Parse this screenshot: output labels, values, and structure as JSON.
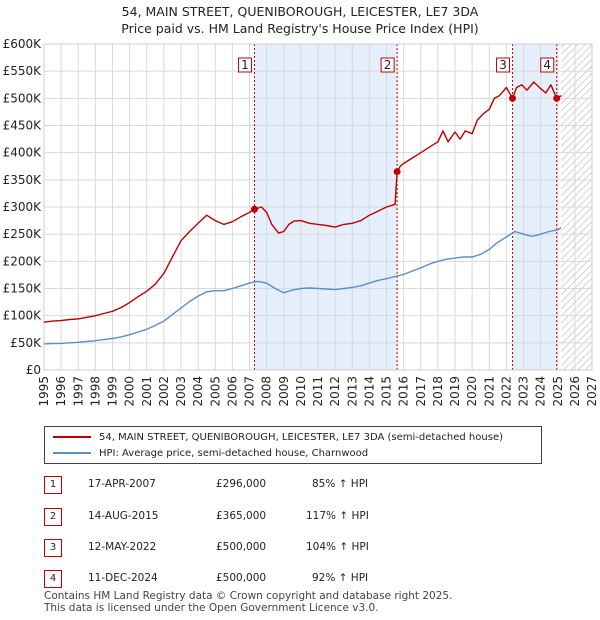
{
  "title_line1": "54, MAIN STREET, QUENIBOROUGH, LEICESTER, LE7 3DA",
  "title_line2": "Price paid vs. HM Land Registry's House Price Index (HPI)",
  "colors": {
    "red": "#c00000",
    "blue": "#5b8ec8",
    "shade": "#e5eefb",
    "grid": "#d8d8d8",
    "hatch": "#aaaaaa"
  },
  "chart_data": {
    "type": "line",
    "title": "54, MAIN STREET, QUENIBOROUGH, LEICESTER, LE7 3DA — Price paid vs. HM Land Registry's House Price Index (HPI)",
    "xlim": [
      1995,
      2027
    ],
    "ylim": [
      0,
      600000
    ],
    "y_ticks": [
      0,
      50000,
      100000,
      150000,
      200000,
      250000,
      300000,
      350000,
      400000,
      450000,
      500000,
      550000,
      600000
    ],
    "y_tick_labels": [
      "£0",
      "£50K",
      "£100K",
      "£150K",
      "£200K",
      "£250K",
      "£300K",
      "£350K",
      "£400K",
      "£450K",
      "£500K",
      "£550K",
      "£600K"
    ],
    "x_ticks": [
      1995,
      1996,
      1997,
      1998,
      1999,
      2000,
      2001,
      2002,
      2003,
      2004,
      2005,
      2006,
      2007,
      2008,
      2009,
      2010,
      2011,
      2012,
      2013,
      2014,
      2015,
      2016,
      2017,
      2018,
      2019,
      2020,
      2021,
      2022,
      2023,
      2024,
      2025,
      2026,
      2027
    ],
    "data_end": 2025.2,
    "series": [
      {
        "name": "54, MAIN STREET, QUENIBOROUGH, LEICESTER, LE7 3DA (semi-detached house)",
        "color": "#c00000",
        "x": [
          1995.0,
          1995.5,
          1996.0,
          1996.5,
          1997.0,
          1997.5,
          1998.0,
          1998.5,
          1999.0,
          1999.5,
          2000.0,
          2000.5,
          2001.0,
          2001.5,
          2002.0,
          2002.5,
          2003.0,
          2003.5,
          2004.0,
          2004.5,
          2005.0,
          2005.5,
          2006.0,
          2006.5,
          2007.0,
          2007.29,
          2007.7,
          2008.0,
          2008.3,
          2008.7,
          2009.0,
          2009.3,
          2009.6,
          2010.0,
          2010.5,
          2011.0,
          2011.5,
          2012.0,
          2012.5,
          2013.0,
          2013.5,
          2014.0,
          2014.5,
          2015.0,
          2015.5,
          2015.62,
          2015.8,
          2016.0,
          2016.5,
          2017.0,
          2017.5,
          2018.0,
          2018.3,
          2018.6,
          2019.0,
          2019.3,
          2019.6,
          2020.0,
          2020.3,
          2020.6,
          2021.0,
          2021.3,
          2021.6,
          2022.0,
          2022.36,
          2022.6,
          2022.9,
          2023.2,
          2023.6,
          2024.0,
          2024.3,
          2024.6,
          2024.94,
          2025.2
        ],
        "values": [
          88000,
          90000,
          91000,
          93000,
          94000,
          97000,
          100000,
          104000,
          108000,
          115000,
          124000,
          135000,
          145000,
          158000,
          178000,
          208000,
          238000,
          255000,
          270000,
          285000,
          275000,
          268000,
          273000,
          282000,
          290000,
          296000,
          300000,
          290000,
          268000,
          252000,
          255000,
          268000,
          274000,
          275000,
          270000,
          268000,
          266000,
          263000,
          268000,
          270000,
          275000,
          285000,
          292000,
          300000,
          305000,
          365000,
          375000,
          380000,
          390000,
          400000,
          410000,
          420000,
          440000,
          420000,
          438000,
          425000,
          440000,
          435000,
          460000,
          470000,
          480000,
          500000,
          505000,
          520000,
          500000,
          520000,
          525000,
          515000,
          530000,
          518000,
          510000,
          525000,
          500000,
          505000
        ]
      },
      {
        "name": "HPI: Average price, semi-detached house, Charnwood",
        "color": "#5b8ec8",
        "x": [
          1995.0,
          1995.5,
          1996.0,
          1996.5,
          1997.0,
          1997.5,
          1998.0,
          1998.5,
          1999.0,
          1999.5,
          2000.0,
          2000.5,
          2001.0,
          2001.5,
          2002.0,
          2002.5,
          2003.0,
          2003.5,
          2004.0,
          2004.5,
          2005.0,
          2005.5,
          2006.0,
          2006.5,
          2007.0,
          2007.5,
          2008.0,
          2008.5,
          2009.0,
          2009.5,
          2010.0,
          2010.5,
          2011.0,
          2011.5,
          2012.0,
          2012.5,
          2013.0,
          2013.5,
          2014.0,
          2014.5,
          2015.0,
          2015.5,
          2016.0,
          2016.5,
          2017.0,
          2017.5,
          2018.0,
          2018.5,
          2019.0,
          2019.5,
          2020.0,
          2020.5,
          2021.0,
          2021.5,
          2022.0,
          2022.5,
          2023.0,
          2023.5,
          2024.0,
          2024.5,
          2025.0,
          2025.2
        ],
        "values": [
          48000,
          48500,
          49000,
          50000,
          51000,
          52500,
          54000,
          56000,
          58000,
          61000,
          65000,
          70000,
          75000,
          82000,
          90000,
          102000,
          114000,
          126000,
          136000,
          144000,
          146000,
          146000,
          150000,
          155000,
          160000,
          163000,
          160000,
          150000,
          142000,
          147000,
          150000,
          151000,
          150000,
          149000,
          148000,
          150000,
          152000,
          155000,
          160000,
          165000,
          168000,
          172000,
          176000,
          182000,
          188000,
          195000,
          200000,
          204000,
          206000,
          208000,
          208000,
          213000,
          222000,
          235000,
          245000,
          255000,
          250000,
          246000,
          250000,
          255000,
          258000,
          262000
        ]
      }
    ],
    "sales": [
      {
        "label": "1",
        "x": 2007.29,
        "value": 296000
      },
      {
        "label": "2",
        "x": 2015.62,
        "value": 365000
      },
      {
        "label": "3",
        "x": 2022.36,
        "value": 500000
      },
      {
        "label": "4",
        "x": 2024.94,
        "value": 500000
      }
    ],
    "shaded_spans": [
      [
        2007.29,
        2015.62
      ],
      [
        2022.36,
        2024.94
      ]
    ]
  },
  "legend": {
    "red_label": "54, MAIN STREET, QUENIBOROUGH, LEICESTER, LE7 3DA (semi-detached house)",
    "blue_label": "HPI: Average price, semi-detached house, Charnwood"
  },
  "table": [
    {
      "num": "1",
      "date": "17-APR-2007",
      "price": "£296,000",
      "hpi": "85% ↑ HPI"
    },
    {
      "num": "2",
      "date": "14-AUG-2015",
      "price": "£365,000",
      "hpi": "117% ↑ HPI"
    },
    {
      "num": "3",
      "date": "12-MAY-2022",
      "price": "£500,000",
      "hpi": "104% ↑ HPI"
    },
    {
      "num": "4",
      "date": "11-DEC-2024",
      "price": "£500,000",
      "hpi": "92% ↑ HPI"
    }
  ],
  "footer_line1": "Contains HM Land Registry data © Crown copyright and database right 2025.",
  "footer_line2": "This data is licensed under the Open Government Licence v3.0."
}
